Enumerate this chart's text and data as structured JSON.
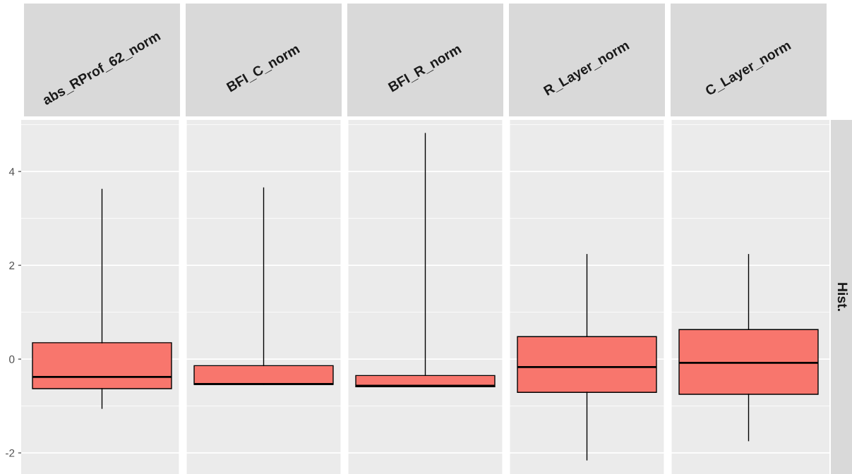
{
  "chart_data": {
    "type": "box",
    "categories": [
      "abs_RProf_62_norm",
      "BFI_C_norm",
      "BFI_R_norm",
      "R_Layer_norm",
      "C_Layer_norm"
    ],
    "boxes": [
      {
        "low": -1.05,
        "q1": -0.63,
        "median": -0.38,
        "q3": 0.35,
        "high": 3.62
      },
      {
        "low": -0.54,
        "q1": -0.54,
        "median": -0.53,
        "q3": -0.14,
        "high": 3.65
      },
      {
        "low": -0.59,
        "q1": -0.59,
        "median": -0.57,
        "q3": -0.35,
        "high": 4.81
      },
      {
        "low": -2.15,
        "q1": -0.71,
        "median": -0.17,
        "q3": 0.48,
        "high": 2.23
      },
      {
        "low": -1.74,
        "q1": -0.75,
        "median": -0.08,
        "q3": 0.63,
        "high": 2.23
      }
    ],
    "color": "#f8766d",
    "ylim": [
      -2.45,
      5.1
    ],
    "yticks": [
      -2,
      0,
      2,
      4
    ],
    "grid": true,
    "annotations": [
      "Hist."
    ]
  }
}
